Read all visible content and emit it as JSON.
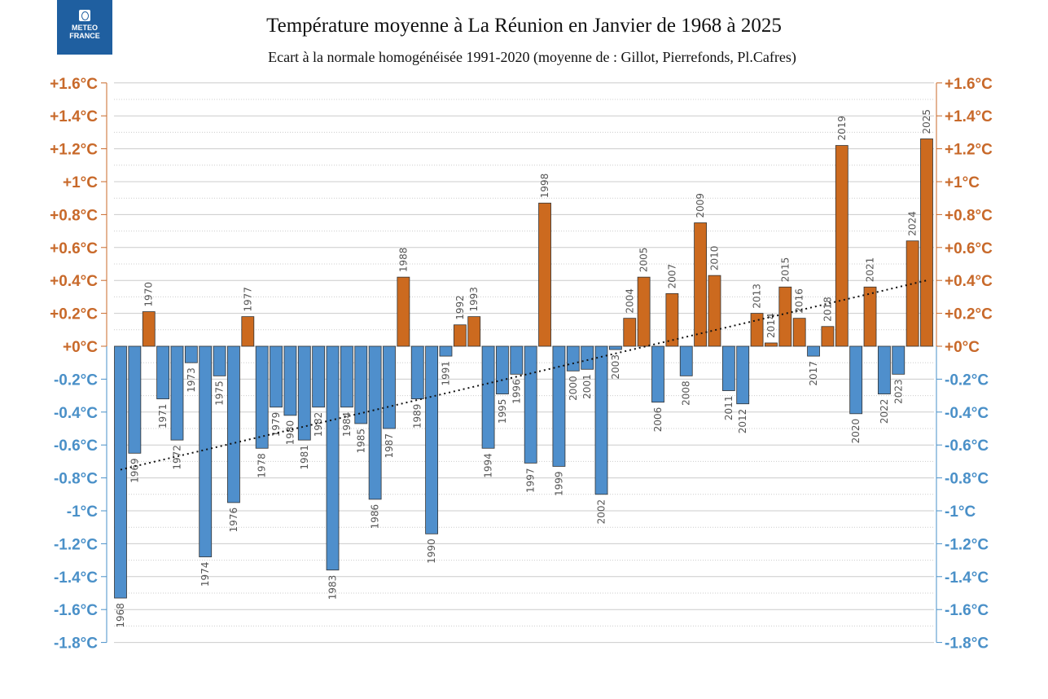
{
  "logo": {
    "text": "METEO FRANCE",
    "line1": "METEO",
    "line2": "FRANCE"
  },
  "chart_data": {
    "type": "bar",
    "title": "Température moyenne à La Réunion en Janvier de 1968 à 2025",
    "subtitle": "Ecart à la normale homogénéisée 1991-2020 (moyenne de : Gillot, Pierrefonds, Pl.Cafres)",
    "ylim": [
      -1.8,
      1.6
    ],
    "yticks": [
      1.6,
      1.4,
      1.2,
      1.0,
      0.8,
      0.6,
      0.4,
      0.2,
      0,
      -0.2,
      -0.4,
      -0.6,
      -0.8,
      -1.0,
      -1.2,
      -1.4,
      -1.6,
      -1.8
    ],
    "ytick_labels": [
      "+1.6°C",
      "+1.4°C",
      "+1.2°C",
      "+1°C",
      "+0.8°C",
      "+0.6°C",
      "+0.4°C",
      "+0.2°C",
      "+0°C",
      "-0.2°C",
      "-0.4°C",
      "-0.6°C",
      "-0.8°C",
      "-1°C",
      "-1.2°C",
      "-1.4°C",
      "-1.6°C",
      "-1.8°C"
    ],
    "grid": true,
    "categories": [
      "1968",
      "1969",
      "1970",
      "1971",
      "1972",
      "1973",
      "1974",
      "1975",
      "1976",
      "1977",
      "1978",
      "1979",
      "1980",
      "1981",
      "1982",
      "1983",
      "1984",
      "1985",
      "1986",
      "1987",
      "1988",
      "1989",
      "1990",
      "1991",
      "1992",
      "1993",
      "1994",
      "1995",
      "1996",
      "1997",
      "1998",
      "1999",
      "2000",
      "2001",
      "2002",
      "2003",
      "2004",
      "2005",
      "2006",
      "2007",
      "2008",
      "2009",
      "2010",
      "2011",
      "2012",
      "2013",
      "2014",
      "2015",
      "2016",
      "2017",
      "2018",
      "2019",
      "2020",
      "2021",
      "2022",
      "2023",
      "2024",
      "2025"
    ],
    "values": [
      -1.53,
      -0.65,
      0.21,
      -0.32,
      -0.57,
      -0.1,
      -1.28,
      -0.18,
      -0.95,
      0.18,
      -0.62,
      -0.37,
      -0.42,
      -0.57,
      -0.37,
      -1.36,
      -0.37,
      -0.47,
      -0.93,
      -0.5,
      0.42,
      -0.32,
      -1.14,
      -0.06,
      0.13,
      0.18,
      -0.62,
      -0.29,
      -0.17,
      -0.71,
      0.87,
      -0.73,
      -0.15,
      -0.14,
      -0.9,
      -0.02,
      0.17,
      0.42,
      -0.34,
      0.32,
      -0.18,
      0.75,
      0.43,
      -0.27,
      -0.35,
      0.2,
      0.02,
      0.36,
      0.17,
      -0.06,
      0.12,
      1.22,
      -0.41,
      0.36,
      -0.29,
      -0.17,
      0.64,
      1.26
    ],
    "trendline": {
      "start": {
        "x": "1968",
        "y": -0.75
      },
      "end": {
        "x": "2025",
        "y": 0.4
      },
      "style": "dotted"
    },
    "colors": {
      "positive": "#cc6a1f",
      "negative": "#4f8fcc",
      "positive_axis": "#c8692a",
      "negative_axis": "#4a90c8"
    }
  }
}
